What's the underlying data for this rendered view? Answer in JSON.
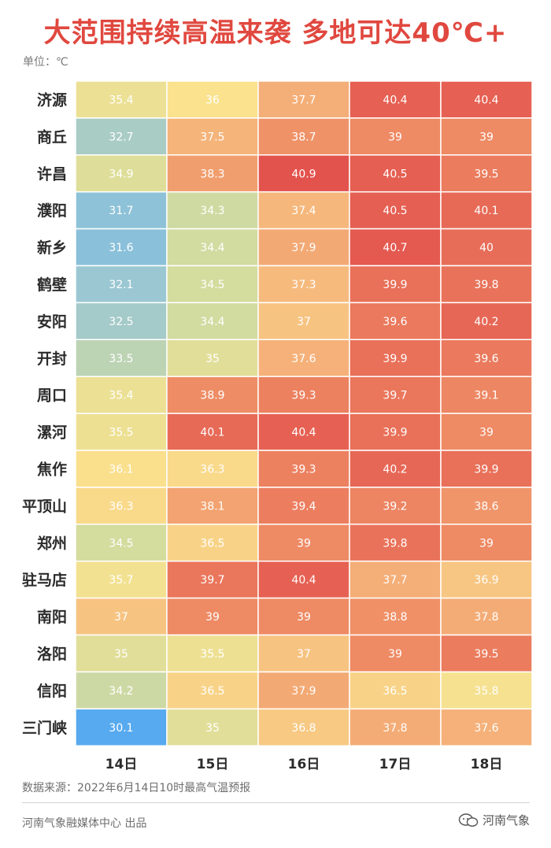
{
  "header": {
    "title": "大范围持续高温来袭 多地可达40℃+",
    "unit_label": "单位：℃"
  },
  "footer": {
    "source": "数据来源：2022年6月14日10时最高气温预报",
    "producer": "河南气象融媒体中心 出品",
    "logo_text": "河南气象"
  },
  "colors": {
    "title": "#e0483f",
    "scale_low": "#55a8f0",
    "scale_mid": "#fbe48e",
    "scale_high": "#e4514d"
  },
  "chart_data": {
    "type": "heatmap",
    "title": "大范围持续高温来袭 多地可达40℃+",
    "unit": "℃",
    "columns": [
      "14日",
      "15日",
      "16日",
      "17日",
      "18日"
    ],
    "rows": [
      "济源",
      "商丘",
      "许昌",
      "濮阳",
      "新乡",
      "鹤壁",
      "安阳",
      "开封",
      "周口",
      "漯河",
      "焦作",
      "平顶山",
      "郑州",
      "驻马店",
      "南阳",
      "洛阳",
      "信阳",
      "三门峡"
    ],
    "values": [
      [
        35.4,
        36,
        37.7,
        40.4,
        40.4
      ],
      [
        32.7,
        37.5,
        38.7,
        39,
        39
      ],
      [
        34.9,
        38.3,
        40.9,
        40.5,
        39.5
      ],
      [
        31.7,
        34.3,
        37.4,
        40.5,
        40.1
      ],
      [
        31.6,
        34.4,
        37.9,
        40.7,
        40
      ],
      [
        32.1,
        34.5,
        37.3,
        39.9,
        39.8
      ],
      [
        32.5,
        34.4,
        37,
        39.6,
        40.2
      ],
      [
        33.5,
        35,
        37.6,
        39.9,
        39.6
      ],
      [
        35.4,
        38.9,
        39.3,
        39.7,
        39.1
      ],
      [
        35.5,
        40.1,
        40.4,
        39.9,
        39
      ],
      [
        36.1,
        36.3,
        39.3,
        40.2,
        39.9
      ],
      [
        36.3,
        38.1,
        39.4,
        39.2,
        38.6
      ],
      [
        34.5,
        36.5,
        39,
        39.8,
        39
      ],
      [
        35.7,
        39.7,
        40.4,
        37.7,
        36.9
      ],
      [
        37,
        39,
        39,
        38.8,
        37.8
      ],
      [
        35,
        35.5,
        37,
        39,
        39.5
      ],
      [
        34.2,
        36.5,
        37.9,
        36.5,
        35.8
      ],
      [
        30.1,
        35,
        36.8,
        37.8,
        37.6
      ]
    ]
  }
}
